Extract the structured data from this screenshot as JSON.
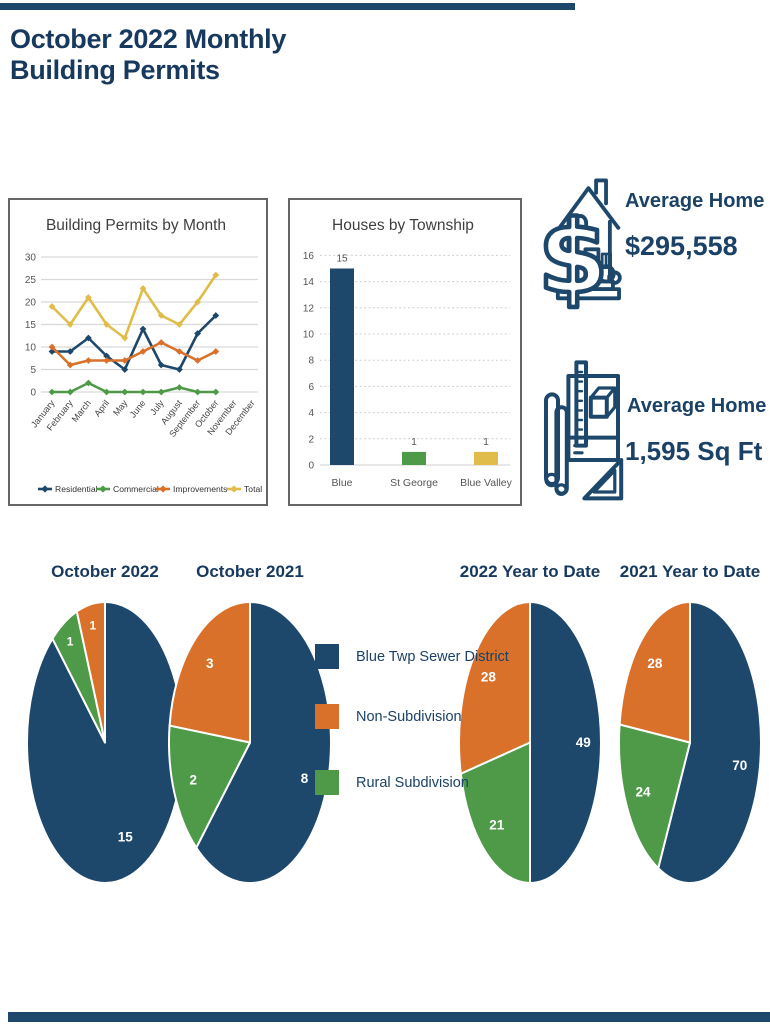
{
  "page": {
    "title_line1": "October 2022 Monthly",
    "title_line2": "Building Permits"
  },
  "colors": {
    "navy": "#1E486B",
    "orange": "#D9712A",
    "green": "#4F9A48",
    "yellow": "#E0BD4A",
    "title_navy": "#17395E",
    "grid": "#D9D9D9",
    "panel_border": "#666666"
  },
  "stats": [
    {
      "icon": "home-dollar-icon",
      "label": "Average Home Value",
      "value": "$295,558"
    },
    {
      "icon": "blueprint-icon",
      "label": "Average Home Size",
      "value": "1,595 Sq Ft"
    }
  ],
  "pie_legend": [
    {
      "label": "Blue Twp Sewer District",
      "color": "#1E486B"
    },
    {
      "label": "Non-Subdivision",
      "color": "#D9712A"
    },
    {
      "label": "Rural Subdivision",
      "color": "#4F9A48"
    }
  ],
  "chart_data": [
    {
      "id": "permits_by_month",
      "type": "line",
      "title": "Building Permits by Month",
      "categories": [
        "January",
        "February",
        "March",
        "April",
        "May",
        "June",
        "July",
        "August",
        "September",
        "October",
        "November",
        "December"
      ],
      "series": [
        {
          "name": "Residential",
          "color": "#1E486B",
          "values": [
            9,
            9,
            12,
            8,
            5,
            14,
            6,
            5,
            13,
            17,
            null,
            null
          ]
        },
        {
          "name": "Commercial",
          "color": "#4F9A48",
          "values": [
            0,
            0,
            2,
            0,
            0,
            0,
            0,
            1,
            0,
            0,
            null,
            null
          ]
        },
        {
          "name": "Improvements",
          "color": "#D9712A",
          "values": [
            10,
            6,
            7,
            7,
            7,
            9,
            11,
            9,
            7,
            9,
            null,
            null
          ]
        },
        {
          "name": "Total",
          "color": "#E0BD4A",
          "values": [
            19,
            15,
            21,
            15,
            12,
            23,
            17,
            15,
            20,
            26,
            null,
            null
          ]
        }
      ],
      "ylim": [
        0,
        30
      ],
      "ytick_step": 5,
      "grid": true,
      "legend_position": "bottom"
    },
    {
      "id": "houses_by_township",
      "type": "bar",
      "title": "Houses by Township",
      "categories": [
        "Blue",
        "St George",
        "Blue Valley"
      ],
      "values": [
        15,
        1,
        1
      ],
      "data_labels": [
        "15",
        "1",
        "1"
      ],
      "bar_colors": [
        "#1E486B",
        "#4F9A48",
        "#E0BD4A"
      ],
      "ylim": [
        0,
        16
      ],
      "ytick_step": 2,
      "grid": true
    },
    {
      "id": "pie_october_2022",
      "type": "pie",
      "title": "October 2022",
      "slices": [
        {
          "label": "Blue Twp Sewer District",
          "value": 15,
          "color": "#1E486B"
        },
        {
          "label": "Rural Subdivision",
          "value": 1,
          "color": "#4F9A48"
        },
        {
          "label": "Non-Subdivision",
          "value": 1,
          "color": "#D9712A"
        }
      ]
    },
    {
      "id": "pie_october_2021",
      "type": "pie",
      "title": "October 2021",
      "slices": [
        {
          "label": "Blue Twp Sewer District",
          "value": 8,
          "color": "#1E486B"
        },
        {
          "label": "Rural Subdivision",
          "value": 2,
          "color": "#4F9A48"
        },
        {
          "label": "Non-Subdivision",
          "value": 3,
          "color": "#D9712A"
        }
      ]
    },
    {
      "id": "pie_2022_ytd",
      "type": "pie",
      "title": "2022 Year to Date",
      "slices": [
        {
          "label": "Blue Twp Sewer District",
          "value": 49,
          "color": "#1E486B"
        },
        {
          "label": "Rural Subdivision",
          "value": 21,
          "color": "#4F9A48"
        },
        {
          "label": "Non-Subdivision",
          "value": 28,
          "color": "#D9712A"
        }
      ]
    },
    {
      "id": "pie_2021_ytd",
      "type": "pie",
      "title": "2021 Year to Date",
      "slices": [
        {
          "label": "Blue Twp Sewer District",
          "value": 70,
          "color": "#1E486B"
        },
        {
          "label": "Rural Subdivision",
          "value": 24,
          "color": "#4F9A48"
        },
        {
          "label": "Non-Subdivision",
          "value": 28,
          "color": "#D9712A"
        }
      ]
    }
  ]
}
